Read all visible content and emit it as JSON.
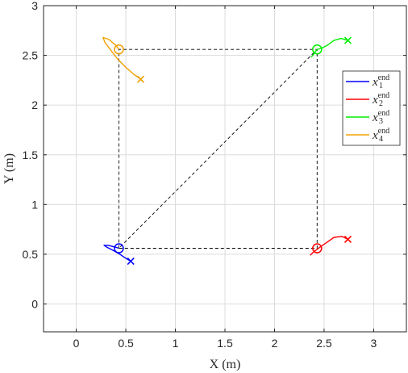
{
  "chart_data": {
    "type": "line",
    "title": "",
    "xlabel": "X (m)",
    "ylabel": "Y (m)",
    "xlim": [
      -0.33,
      3.33
    ],
    "ylim": [
      -0.28,
      3.0
    ],
    "xticks": [
      0,
      0.5,
      1,
      1.5,
      2,
      2.5,
      3
    ],
    "yticks": [
      0,
      0.5,
      1,
      1.5,
      2,
      2.5,
      3
    ],
    "xtick_labels": [
      "0",
      "0.5",
      "1",
      "1.5",
      "2",
      "2.5",
      "3"
    ],
    "ytick_labels": [
      "0",
      "0.5",
      "1",
      "1.5",
      "2",
      "2.5",
      "3"
    ],
    "grid": true,
    "legend_position": "right",
    "formation": {
      "color": "#000000",
      "style": "dashed",
      "points": [
        [
          0.43,
          0.56
        ],
        [
          0.43,
          2.56
        ],
        [
          2.43,
          2.56
        ],
        [
          2.43,
          0.56
        ],
        [
          0.43,
          0.56
        ],
        [
          2.43,
          2.56
        ]
      ]
    },
    "series": [
      {
        "name": "x_1^end",
        "label_base": "x",
        "label_sub": "1",
        "label_sup": "end",
        "color": "#0000ff",
        "x": [
          0.55,
          0.5,
          0.44,
          0.37,
          0.31,
          0.28,
          0.32,
          0.4,
          0.43
        ],
        "y": [
          0.43,
          0.46,
          0.5,
          0.54,
          0.57,
          0.59,
          0.59,
          0.57,
          0.56
        ],
        "start": [
          0.55,
          0.43
        ],
        "end": [
          0.43,
          0.56
        ]
      },
      {
        "name": "x_2^end",
        "label_base": "x",
        "label_sub": "2",
        "label_sup": "end",
        "color": "#ff0000",
        "x": [
          2.74,
          2.68,
          2.6,
          2.53,
          2.47,
          2.43,
          2.39,
          2.36
        ],
        "y": [
          0.65,
          0.68,
          0.67,
          0.62,
          0.58,
          0.55,
          0.52,
          0.49
        ],
        "start": [
          2.74,
          0.65
        ],
        "end": [
          2.43,
          0.56
        ]
      },
      {
        "name": "x_3^end",
        "label_base": "x",
        "label_sub": "3",
        "label_sup": "end",
        "color": "#00ee00",
        "x": [
          2.74,
          2.67,
          2.6,
          2.53,
          2.47,
          2.43,
          2.4,
          2.37
        ],
        "y": [
          2.65,
          2.67,
          2.65,
          2.6,
          2.57,
          2.56,
          2.52,
          2.48
        ],
        "start": [
          2.74,
          2.65
        ],
        "end": [
          2.43,
          2.56
        ]
      },
      {
        "name": "x_4^end",
        "label_base": "x",
        "label_sub": "4",
        "label_sup": "end",
        "color": "#f0a000",
        "x": [
          0.65,
          0.58,
          0.5,
          0.42,
          0.35,
          0.29,
          0.27,
          0.33,
          0.4,
          0.43
        ],
        "y": [
          2.26,
          2.31,
          2.38,
          2.46,
          2.55,
          2.63,
          2.68,
          2.66,
          2.6,
          2.56
        ],
        "start": [
          0.65,
          2.26
        ],
        "end": [
          0.43,
          2.56
        ]
      }
    ]
  }
}
